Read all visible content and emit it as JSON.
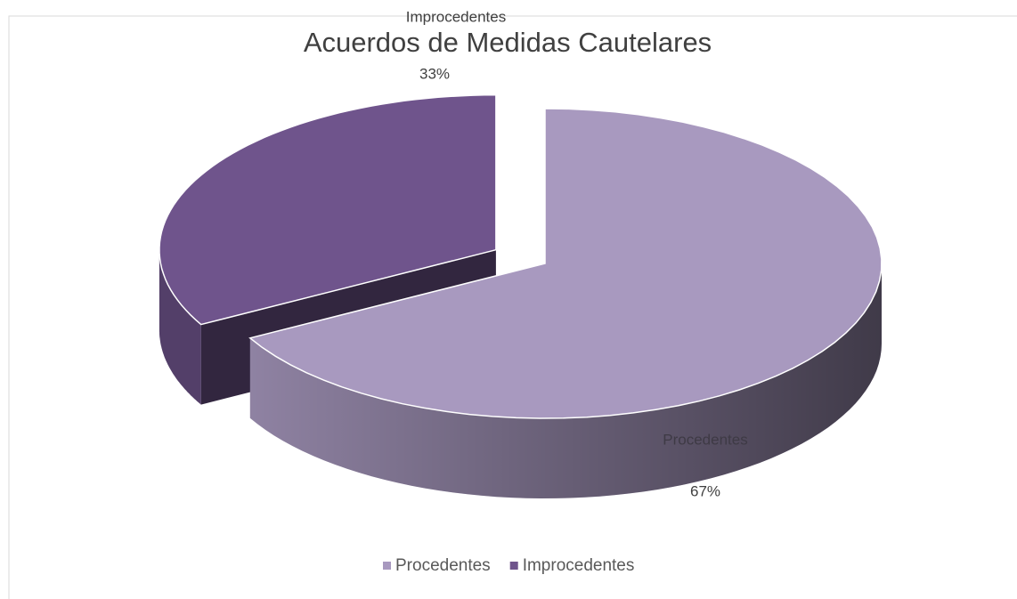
{
  "chart_data": {
    "type": "pie",
    "title": "Acuerdos de Medidas Cautelares",
    "categories": [
      "Procedentes",
      "Improcedentes"
    ],
    "values": [
      67,
      33
    ],
    "value_labels": [
      "67%",
      "33%"
    ],
    "colors": [
      "#a899bf",
      "#6f548c"
    ],
    "legend": "bottom"
  }
}
